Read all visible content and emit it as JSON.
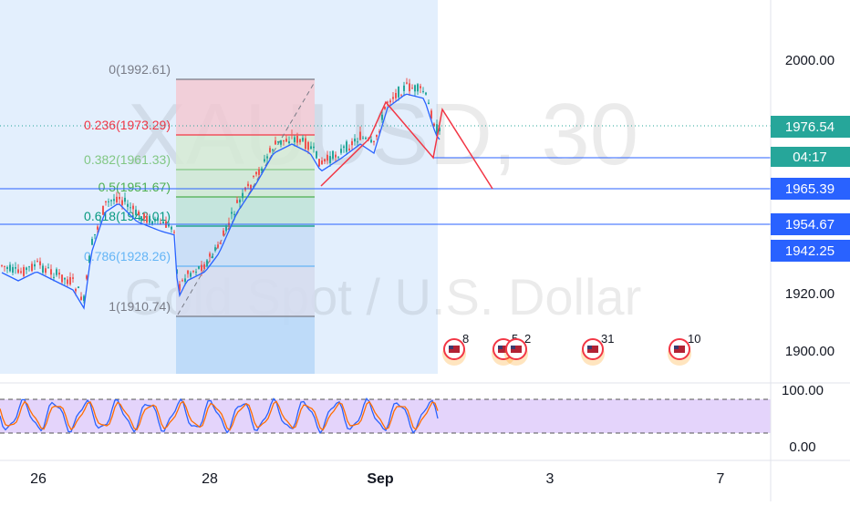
{
  "chart_data": {
    "type": "candlestick",
    "watermark": {
      "symbol": "XAUUSD, 30",
      "description": "Gold Spot / U.S. Dollar"
    },
    "price_axis": {
      "ticks": [
        "2000.00",
        "1920.00",
        "1900.00"
      ],
      "badges": [
        {
          "label": "1976.54",
          "sub": "04:17",
          "color": "#26a69a"
        },
        {
          "label": "1965.39",
          "color": "#2962ff"
        },
        {
          "label": "1954.67",
          "color": "#2962ff"
        },
        {
          "label": "1942.25",
          "color": "#2962ff"
        }
      ]
    },
    "time_axis": {
      "ticks": [
        "26",
        "28",
        "Sep",
        "3",
        "7"
      ]
    },
    "fibonacci": [
      {
        "label": "0(1992.61)",
        "color": "#787b86"
      },
      {
        "label": "0.236(1973.29)",
        "color": "#f23645"
      },
      {
        "label": "0.382(1961.33)",
        "color": "#81c784"
      },
      {
        "label": "0.5(1951.67)",
        "color": "#4caf50"
      },
      {
        "label": "0.618(1942.01)",
        "color": "#089981"
      },
      {
        "label": "0.786(1928.26)",
        "color": "#64b5f6"
      },
      {
        "label": "1(1910.74)",
        "color": "#787b86"
      }
    ],
    "events": [
      {
        "icon": "us-flag-icon",
        "count": "8"
      },
      {
        "icon": "us-flag-icon",
        "count": "5"
      },
      {
        "icon": "us-flag-icon",
        "count": "2"
      },
      {
        "icon": "us-flag-icon",
        "count": "31"
      },
      {
        "icon": "us-flag-icon",
        "count": "10"
      }
    ],
    "oscillator": {
      "ticks": [
        "100.00",
        "0.00"
      ]
    }
  }
}
